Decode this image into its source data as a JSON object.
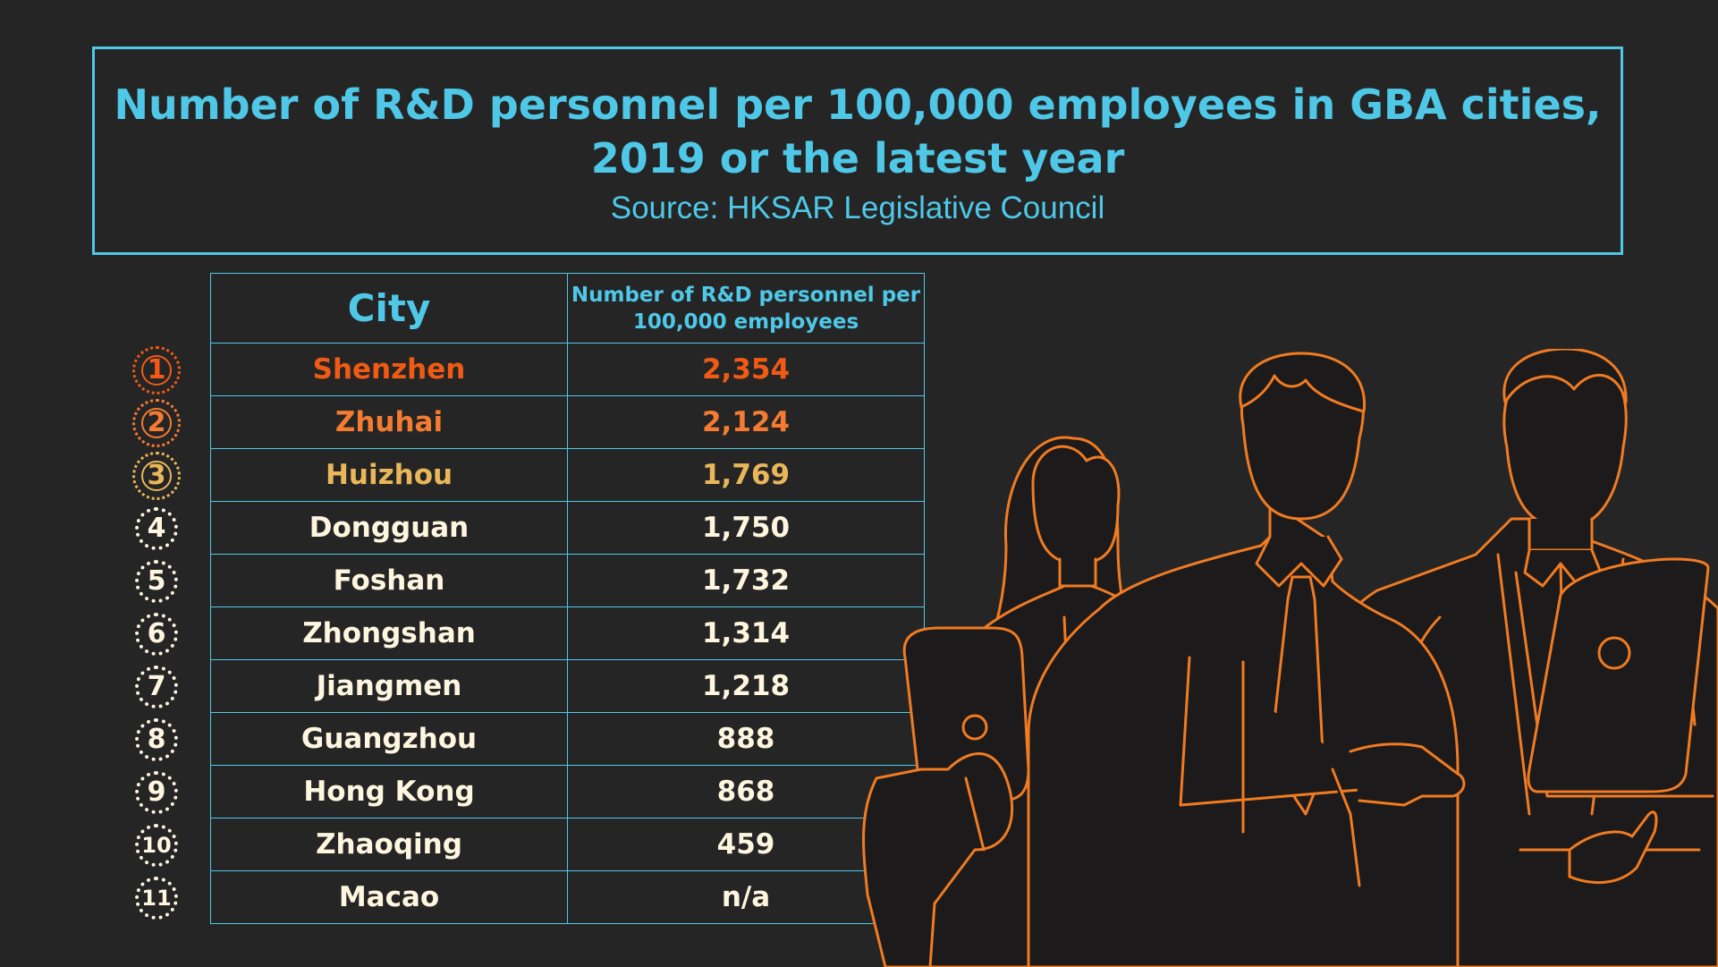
{
  "chart_data": {
    "type": "table",
    "title": "Number of R&D personnel per 100,000 employees in GBA cities, 2019 or the latest year",
    "subtitle": "Source: HKSAR Legislative Council",
    "columns": [
      "City",
      "Number of R&D personnel per 100,000 employees"
    ],
    "rows": [
      {
        "rank": "1",
        "city": "Shenzhen",
        "value": "2,354",
        "color": "#f05a14"
      },
      {
        "rank": "2",
        "city": "Zhuhai",
        "value": "2,124",
        "color": "#f47b30"
      },
      {
        "rank": "3",
        "city": "Huizhou",
        "value": "1,769",
        "color": "#e9b65a"
      },
      {
        "rank": "4",
        "city": "Dongguan",
        "value": "1,750",
        "color": "#fff6e0"
      },
      {
        "rank": "5",
        "city": "Foshan",
        "value": "1,732",
        "color": "#fff6e0"
      },
      {
        "rank": "6",
        "city": "Zhongshan",
        "value": "1,314",
        "color": "#fff6e0"
      },
      {
        "rank": "7",
        "city": "Jiangmen",
        "value": "1,218",
        "color": "#fff6e0"
      },
      {
        "rank": "8",
        "city": "Guangzhou",
        "value": "888",
        "color": "#fff6e0"
      },
      {
        "rank": "9",
        "city": "Hong Kong",
        "value": "868",
        "color": "#fff6e0"
      },
      {
        "rank": "10",
        "city": "Zhaoqing",
        "value": "459",
        "color": "#fff6e0"
      },
      {
        "rank": "11",
        "city": "Macao",
        "value": "n/a",
        "color": "#fff6e0"
      }
    ]
  },
  "colors": {
    "background": "#252525",
    "accent": "#4fc8e8",
    "illustration": "#f07b22"
  },
  "icons": {
    "illustration": "business-people-illustration"
  }
}
